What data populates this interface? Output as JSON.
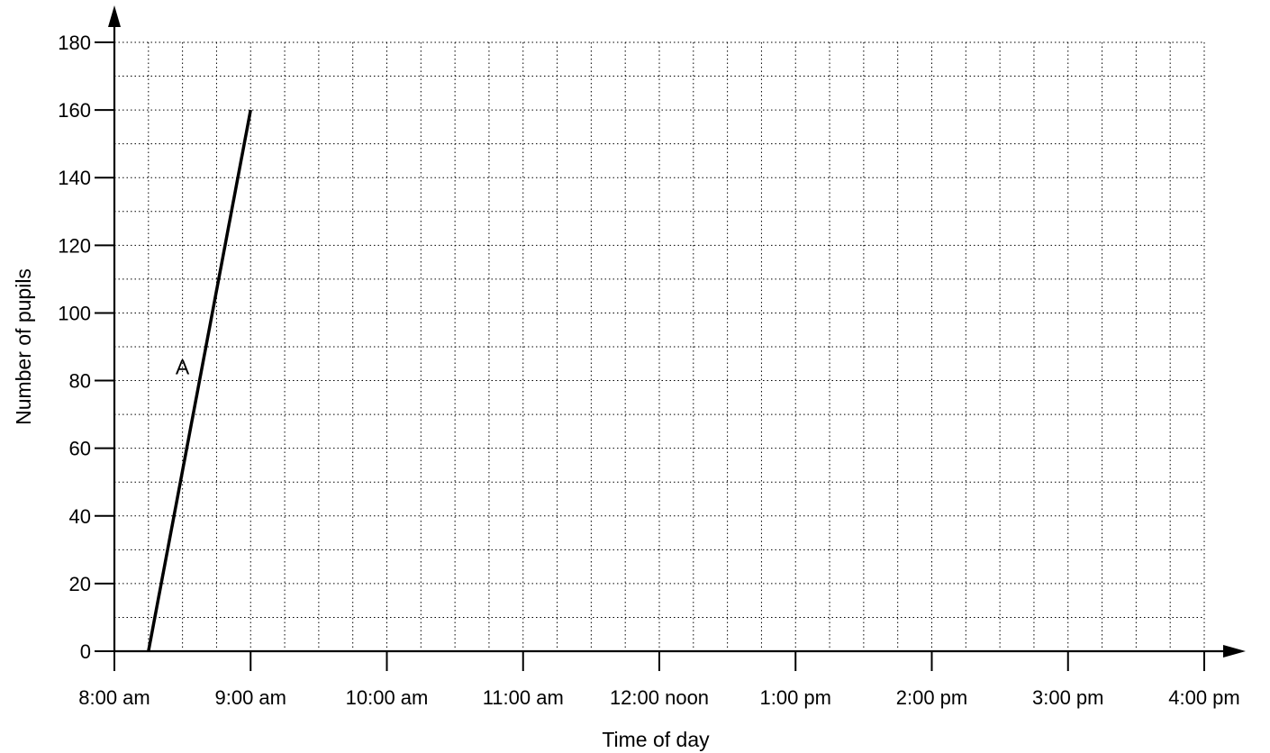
{
  "chart_data": {
    "type": "line",
    "xlabel": "Time of day",
    "ylabel": "Number of pupils",
    "x_unit": "minutes after 8:00 am",
    "xlim": [
      0,
      480
    ],
    "ylim": [
      0,
      180
    ],
    "x_ticks": [
      {
        "value": 0,
        "label": "8:00 am"
      },
      {
        "value": 60,
        "label": "9:00 am"
      },
      {
        "value": 120,
        "label": "10:00 am"
      },
      {
        "value": 180,
        "label": "11:00 am"
      },
      {
        "value": 240,
        "label": "12:00 noon"
      },
      {
        "value": 300,
        "label": "1:00 pm"
      },
      {
        "value": 360,
        "label": "2:00 pm"
      },
      {
        "value": 420,
        "label": "3:00 pm"
      },
      {
        "value": 480,
        "label": "4:00 pm"
      }
    ],
    "x_minor_step": 15,
    "y_ticks": [
      0,
      20,
      40,
      60,
      80,
      100,
      120,
      140,
      160,
      180
    ],
    "y_minor_step": 10,
    "grid": true,
    "series": [
      {
        "label": "A",
        "points": [
          {
            "x": 15,
            "y": 0
          },
          {
            "x": 60,
            "y": 160
          }
        ]
      }
    ]
  }
}
